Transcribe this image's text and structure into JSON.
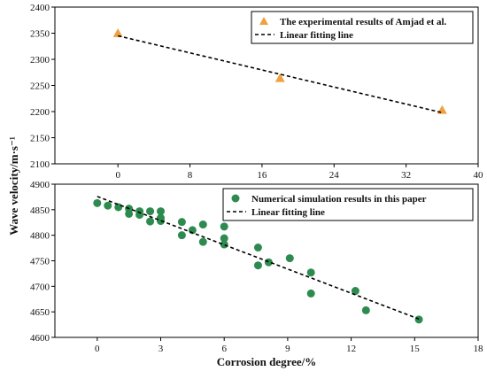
{
  "chart_data": [
    {
      "type": "scatter",
      "x_ticks": [
        0,
        8,
        16,
        24,
        32,
        40
      ],
      "y_ticks": [
        2100,
        2150,
        2200,
        2250,
        2300,
        2350,
        2400
      ],
      "xlim": [
        -7,
        40
      ],
      "ylim": [
        2100,
        2400
      ],
      "series": [
        {
          "name": "The experimental results of Amjad et al.",
          "marker": "triangle",
          "color": "#f0a040",
          "x": [
            0,
            18,
            36
          ],
          "y": [
            2350,
            2264,
            2203
          ]
        },
        {
          "name": "Linear fitting line",
          "marker": "dashed-line",
          "color": "#000000",
          "x": [
            0,
            36
          ],
          "y": [
            2345,
            2198
          ]
        }
      ],
      "grid": false,
      "legend": "top-right"
    },
    {
      "type": "scatter",
      "xlabel": "Corrosion degree/%",
      "x_ticks": [
        0,
        3,
        6,
        9,
        12,
        15,
        18
      ],
      "y_ticks": [
        4600,
        4650,
        4700,
        4750,
        4800,
        4850,
        4900
      ],
      "xlim": [
        -2,
        18
      ],
      "ylim": [
        4600,
        4900
      ],
      "series": [
        {
          "name": "Numerical simulation results in this paper",
          "marker": "circle",
          "color": "#2e8b50",
          "x": [
            0,
            0.5,
            1.0,
            1.5,
            1.5,
            2.0,
            2.0,
            2.5,
            2.5,
            3.0,
            3.0,
            3.0,
            4.0,
            4.0,
            4.5,
            5.0,
            5.0,
            6.0,
            6.0,
            6.0,
            7.6,
            7.6,
            8.1,
            9.1,
            10.1,
            10.1,
            12.2,
            12.7,
            15.2
          ],
          "y": [
            4863,
            4858,
            4855,
            4852,
            4842,
            4847,
            4840,
            4847,
            4827,
            4847,
            4834,
            4828,
            4826,
            4800,
            4810,
            4821,
            4787,
            4817,
            4794,
            4782,
            4776,
            4741,
            4747,
            4755,
            4727,
            4686,
            4691,
            4653,
            4635
          ]
        },
        {
          "name": "Linear fitting line",
          "marker": "dashed-line",
          "color": "#000000",
          "x": [
            0,
            15.2
          ],
          "y": [
            4876,
            4636
          ]
        }
      ],
      "grid": false,
      "legend": "top-right"
    }
  ],
  "shared_ylabel": "Wave velocity/m·s⁻¹"
}
